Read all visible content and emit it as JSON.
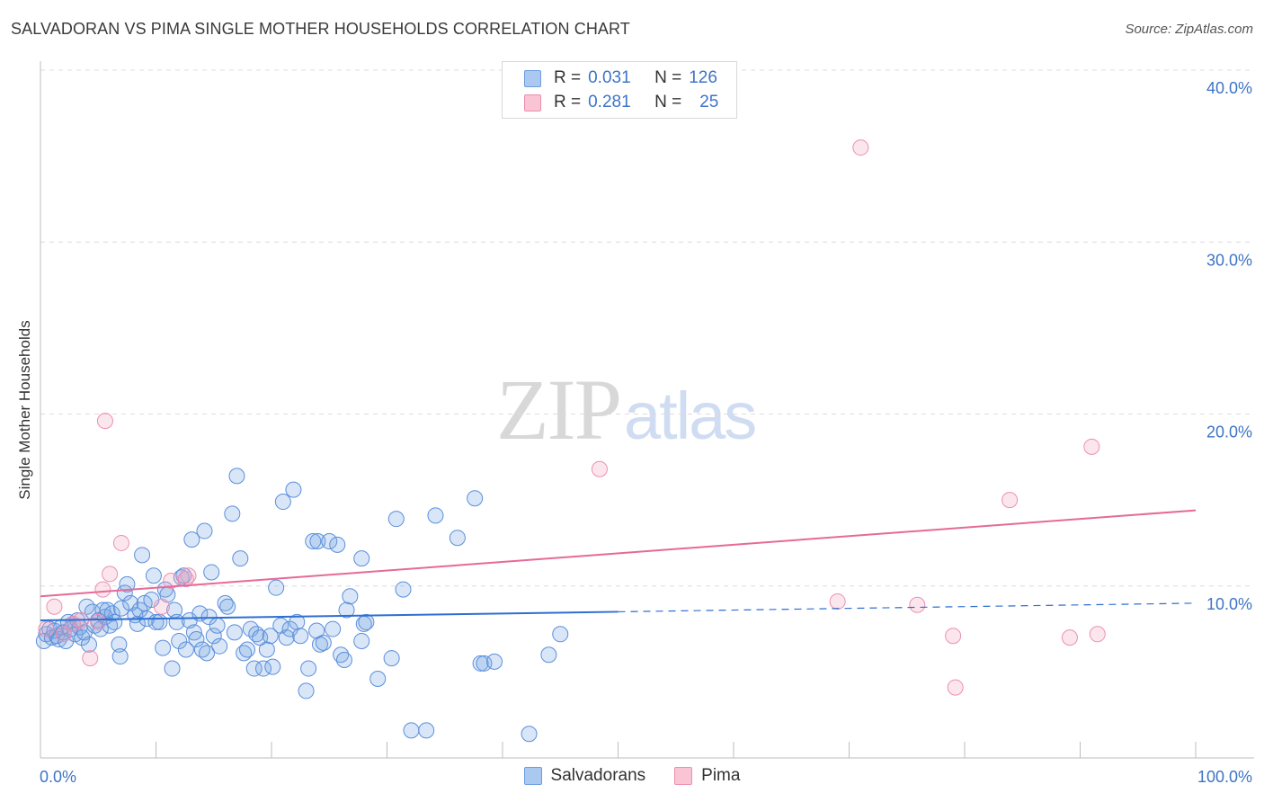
{
  "header": {
    "title": "SALVADORAN VS PIMA SINGLE MOTHER HOUSEHOLDS CORRELATION CHART",
    "source": "Source: ZipAtlas.com"
  },
  "watermark": {
    "zip": "ZIP",
    "atlas": "atlas"
  },
  "legend": {
    "rows": [
      {
        "r_label": "R =",
        "r_value": "0.031",
        "n_label": "N =",
        "n_value": "126",
        "color": "#aac8f0",
        "border": "#6b9ee0"
      },
      {
        "r_label": "R =",
        "r_value": "0.281",
        "n_label": "N =",
        "n_value": "25",
        "color": "#f9c4d4",
        "border": "#ea8fae"
      }
    ]
  },
  "bottom_legend": {
    "items": [
      {
        "label": "Salvadorans",
        "color": "#aac8f0",
        "border": "#6b9ee0"
      },
      {
        "label": "Pima",
        "color": "#f9c4d4",
        "border": "#ea8fae"
      }
    ]
  },
  "colors": {
    "salvadoran_fill": "rgba(120,166,228,0.28)",
    "salvadoran_stroke": "#5a8fdc",
    "salvadoran_line": "#2e6fd0",
    "pima_fill": "rgba(244,164,190,0.28)",
    "pima_stroke": "#ec8fb0",
    "pima_line": "#e56a98",
    "grid": "#dcdcdc",
    "tick_label": "#3d74c6"
  },
  "chart_data": {
    "type": "scatter",
    "title": "SALVADORAN VS PIMA SINGLE MOTHER HOUSEHOLDS CORRELATION CHART",
    "xlabel": "",
    "ylabel": "Single Mother Households",
    "xlim": [
      0,
      100
    ],
    "ylim": [
      0,
      40
    ],
    "x_tick_labels": [
      {
        "value": 0,
        "label": "0.0%"
      },
      {
        "value": 100,
        "label": "100.0%"
      }
    ],
    "x_minor_ticks": [
      10,
      20,
      30,
      40,
      50,
      60,
      70,
      80,
      90
    ],
    "y_ticks": [
      {
        "value": 10,
        "label": "10.0%"
      },
      {
        "value": 20,
        "label": "20.0%"
      },
      {
        "value": 30,
        "label": "30.0%"
      },
      {
        "value": 40,
        "label": "40.0%"
      }
    ],
    "series": [
      {
        "name": "Salvadorans",
        "r": 0.031,
        "n": 126,
        "trend": {
          "x0": 0,
          "y0": 8.0,
          "x1": 50,
          "y1": 8.5,
          "dash_to_x": 100,
          "dash_to_y": 9.0
        },
        "points": [
          [
            0.3,
            6.8
          ],
          [
            0.5,
            7.2
          ],
          [
            0.8,
            7.5
          ],
          [
            1.0,
            7.0
          ],
          [
            1.2,
            7.4
          ],
          [
            1.4,
            7.1
          ],
          [
            1.6,
            6.9
          ],
          [
            1.8,
            7.6
          ],
          [
            2.0,
            7.3
          ],
          [
            2.2,
            6.8
          ],
          [
            2.4,
            7.9
          ],
          [
            2.6,
            7.5
          ],
          [
            2.8,
            7.8
          ],
          [
            3.0,
            7.2
          ],
          [
            3.2,
            8.0
          ],
          [
            3.4,
            7.6
          ],
          [
            3.6,
            7.0
          ],
          [
            3.8,
            7.3
          ],
          [
            4.0,
            8.8
          ],
          [
            4.2,
            6.6
          ],
          [
            4.5,
            8.5
          ],
          [
            4.7,
            7.7
          ],
          [
            5.0,
            8.0
          ],
          [
            5.2,
            7.5
          ],
          [
            5.4,
            8.6
          ],
          [
            5.6,
            8.2
          ],
          [
            5.8,
            8.6
          ],
          [
            6.0,
            7.7
          ],
          [
            6.2,
            8.4
          ],
          [
            6.4,
            7.9
          ],
          [
            6.8,
            6.6
          ],
          [
            6.9,
            5.9
          ],
          [
            7.0,
            8.7
          ],
          [
            7.3,
            9.6
          ],
          [
            7.5,
            10.1
          ],
          [
            7.8,
            9.0
          ],
          [
            8.2,
            8.3
          ],
          [
            8.4,
            7.8
          ],
          [
            8.6,
            8.6
          ],
          [
            8.8,
            11.8
          ],
          [
            9.0,
            9.0
          ],
          [
            9.2,
            8.1
          ],
          [
            9.6,
            9.2
          ],
          [
            9.8,
            10.6
          ],
          [
            10.0,
            7.9
          ],
          [
            10.3,
            7.9
          ],
          [
            10.6,
            6.4
          ],
          [
            10.8,
            9.8
          ],
          [
            11.0,
            9.5
          ],
          [
            11.4,
            5.2
          ],
          [
            11.6,
            8.6
          ],
          [
            11.8,
            7.9
          ],
          [
            12.0,
            6.8
          ],
          [
            12.2,
            10.5
          ],
          [
            12.4,
            10.6
          ],
          [
            12.6,
            6.3
          ],
          [
            12.9,
            8.0
          ],
          [
            13.1,
            12.7
          ],
          [
            13.3,
            7.3
          ],
          [
            13.5,
            6.9
          ],
          [
            13.8,
            8.4
          ],
          [
            14.0,
            6.3
          ],
          [
            14.2,
            13.2
          ],
          [
            14.4,
            6.1
          ],
          [
            14.6,
            8.2
          ],
          [
            14.8,
            10.8
          ],
          [
            15.0,
            7.1
          ],
          [
            15.3,
            7.7
          ],
          [
            15.5,
            6.5
          ],
          [
            16.0,
            9.0
          ],
          [
            16.2,
            8.8
          ],
          [
            16.6,
            14.2
          ],
          [
            16.8,
            7.3
          ],
          [
            17.0,
            16.4
          ],
          [
            17.3,
            11.6
          ],
          [
            17.6,
            6.1
          ],
          [
            17.9,
            6.3
          ],
          [
            18.2,
            7.5
          ],
          [
            18.5,
            5.2
          ],
          [
            18.7,
            7.2
          ],
          [
            19.0,
            7.0
          ],
          [
            19.3,
            5.2
          ],
          [
            19.6,
            6.3
          ],
          [
            19.9,
            7.1
          ],
          [
            20.1,
            5.3
          ],
          [
            20.4,
            9.9
          ],
          [
            20.8,
            7.7
          ],
          [
            21.0,
            14.9
          ],
          [
            21.3,
            7.0
          ],
          [
            21.6,
            7.5
          ],
          [
            21.9,
            15.6
          ],
          [
            22.2,
            7.9
          ],
          [
            22.5,
            7.1
          ],
          [
            23.0,
            3.9
          ],
          [
            23.2,
            5.2
          ],
          [
            23.6,
            12.6
          ],
          [
            23.9,
            7.4
          ],
          [
            24.0,
            12.6
          ],
          [
            24.2,
            6.6
          ],
          [
            24.5,
            6.7
          ],
          [
            25.0,
            12.6
          ],
          [
            25.3,
            7.5
          ],
          [
            25.7,
            12.4
          ],
          [
            26.0,
            6.0
          ],
          [
            26.3,
            5.7
          ],
          [
            26.5,
            8.6
          ],
          [
            26.8,
            9.4
          ],
          [
            27.8,
            6.8
          ],
          [
            27.8,
            11.6
          ],
          [
            28.0,
            7.8
          ],
          [
            28.2,
            7.9
          ],
          [
            29.2,
            4.6
          ],
          [
            30.4,
            5.8
          ],
          [
            30.8,
            13.9
          ],
          [
            31.4,
            9.8
          ],
          [
            32.1,
            1.6
          ],
          [
            33.4,
            1.6
          ],
          [
            34.2,
            14.1
          ],
          [
            36.1,
            12.8
          ],
          [
            37.6,
            15.1
          ],
          [
            38.1,
            5.5
          ],
          [
            38.4,
            5.5
          ],
          [
            39.3,
            5.6
          ],
          [
            42.3,
            1.4
          ],
          [
            44.0,
            6.0
          ],
          [
            45.0,
            7.2
          ]
        ]
      },
      {
        "name": "Pima",
        "r": 0.281,
        "n": 25,
        "trend": {
          "x0": 0,
          "y0": 9.4,
          "x1": 100,
          "y1": 14.4
        },
        "points": [
          [
            0.5,
            7.5
          ],
          [
            1.2,
            8.8
          ],
          [
            2.0,
            7.2
          ],
          [
            2.8,
            7.8
          ],
          [
            3.5,
            8.0
          ],
          [
            4.3,
            5.8
          ],
          [
            5.0,
            7.9
          ],
          [
            5.4,
            9.8
          ],
          [
            5.6,
            19.6
          ],
          [
            6.0,
            10.7
          ],
          [
            7.0,
            12.5
          ],
          [
            10.5,
            8.8
          ],
          [
            11.3,
            10.3
          ],
          [
            12.6,
            10.4
          ],
          [
            12.8,
            10.6
          ],
          [
            48.4,
            16.8
          ],
          [
            69.0,
            9.1
          ],
          [
            71.0,
            35.5
          ],
          [
            75.9,
            8.9
          ],
          [
            79.0,
            7.1
          ],
          [
            79.2,
            4.1
          ],
          [
            83.9,
            15.0
          ],
          [
            89.1,
            7.0
          ],
          [
            91.0,
            18.1
          ],
          [
            91.5,
            7.2
          ]
        ]
      }
    ],
    "legend_position": "top-center"
  }
}
